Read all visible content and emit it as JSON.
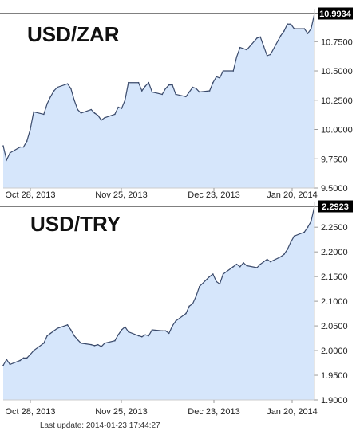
{
  "chart_data": [
    {
      "type": "area",
      "title": "USD/ZAR",
      "last_value_label": "10.9934",
      "x_tick_labels": [
        "Oct 28, 2013",
        "Nov 25, 2013",
        "Dec 23, 2013",
        "Jan 20, 2014"
      ],
      "y_tick_labels": [
        "9.5000",
        "9.7500",
        "10.0000",
        "10.2500",
        "10.5000",
        "10.7500"
      ],
      "y_ticks": [
        9.5,
        9.75,
        10.0,
        10.25,
        10.5,
        10.75
      ],
      "ylim": [
        9.5,
        10.99
      ],
      "grid": false,
      "colors": {
        "line": "#3a4a6b",
        "fill": "#d6e6fb",
        "marker": "#000000"
      },
      "series": [
        {
          "x": [
            "2013-10-23",
            "2013-10-24",
            "2013-10-25",
            "2013-10-28",
            "2013-10-29",
            "2013-10-30",
            "2013-10-31",
            "2013-11-01",
            "2013-11-04",
            "2013-11-05",
            "2013-11-06",
            "2013-11-07",
            "2013-11-08",
            "2013-11-11",
            "2013-11-12",
            "2013-11-13",
            "2013-11-14",
            "2013-11-15",
            "2013-11-18",
            "2013-11-19",
            "2013-11-20",
            "2013-11-21",
            "2013-11-22",
            "2013-11-25",
            "2013-11-26",
            "2013-11-27",
            "2013-11-28",
            "2013-11-29",
            "2013-12-02",
            "2013-12-03",
            "2013-12-04",
            "2013-12-05",
            "2013-12-06",
            "2013-12-09",
            "2013-12-10",
            "2013-12-11",
            "2013-12-12",
            "2013-12-13",
            "2013-12-16",
            "2013-12-17",
            "2013-12-18",
            "2013-12-19",
            "2013-12-20",
            "2013-12-23",
            "2013-12-24",
            "2013-12-25",
            "2013-12-26",
            "2013-12-27",
            "2013-12-30",
            "2013-12-31",
            "2014-01-01",
            "2014-01-02",
            "2014-01-03",
            "2014-01-06",
            "2014-01-07",
            "2014-01-08",
            "2014-01-09",
            "2014-01-10",
            "2014-01-13",
            "2014-01-14",
            "2014-01-15",
            "2014-01-16",
            "2014-01-17",
            "2014-01-20",
            "2014-01-21",
            "2014-01-22",
            "2014-01-23"
          ],
          "values": [
            9.86,
            9.74,
            9.8,
            9.85,
            9.85,
            9.9,
            10.0,
            10.15,
            10.13,
            10.22,
            10.28,
            10.33,
            10.36,
            10.39,
            10.35,
            10.25,
            10.17,
            10.14,
            10.17,
            10.14,
            10.12,
            10.08,
            10.1,
            10.13,
            10.19,
            10.18,
            10.25,
            10.4,
            10.4,
            10.33,
            10.37,
            10.4,
            10.32,
            10.3,
            10.35,
            10.38,
            10.38,
            10.3,
            10.28,
            10.32,
            10.36,
            10.35,
            10.32,
            10.33,
            10.4,
            10.45,
            10.44,
            10.5,
            10.5,
            10.62,
            10.7,
            10.69,
            10.68,
            10.78,
            10.79,
            10.71,
            10.63,
            10.64,
            10.8,
            10.84,
            10.9,
            10.9,
            10.86,
            10.86,
            10.82,
            10.86,
            10.99
          ]
        }
      ]
    },
    {
      "type": "area",
      "title": "USD/TRY",
      "last_value_label": "2.2923",
      "x_tick_labels": [
        "Oct 28, 2013",
        "Nov 25, 2013",
        "Dec 23, 2013",
        "Jan 20, 2014"
      ],
      "y_tick_labels": [
        "1.9000",
        "1.9500",
        "2.0000",
        "2.0500",
        "2.1000",
        "2.1500",
        "2.2000",
        "2.2500"
      ],
      "y_ticks": [
        1.9,
        1.95,
        2.0,
        2.05,
        2.1,
        2.15,
        2.2,
        2.25
      ],
      "ylim": [
        1.9,
        2.2923
      ],
      "grid": false,
      "colors": {
        "line": "#3a4a6b",
        "fill": "#d6e6fb",
        "marker": "#000000"
      },
      "series": [
        {
          "x": [
            "2013-10-23",
            "2013-10-24",
            "2013-10-25",
            "2013-10-28",
            "2013-10-29",
            "2013-10-30",
            "2013-10-31",
            "2013-11-01",
            "2013-11-04",
            "2013-11-05",
            "2013-11-06",
            "2013-11-07",
            "2013-11-08",
            "2013-11-11",
            "2013-11-12",
            "2013-11-13",
            "2013-11-14",
            "2013-11-15",
            "2013-11-18",
            "2013-11-19",
            "2013-11-20",
            "2013-11-21",
            "2013-11-22",
            "2013-11-25",
            "2013-11-26",
            "2013-11-27",
            "2013-11-28",
            "2013-11-29",
            "2013-12-02",
            "2013-12-03",
            "2013-12-04",
            "2013-12-05",
            "2013-12-06",
            "2013-12-09",
            "2013-12-10",
            "2013-12-11",
            "2013-12-12",
            "2013-12-13",
            "2013-12-16",
            "2013-12-17",
            "2013-12-18",
            "2013-12-19",
            "2013-12-20",
            "2013-12-23",
            "2013-12-24",
            "2013-12-25",
            "2013-12-26",
            "2013-12-27",
            "2013-12-30",
            "2013-12-31",
            "2014-01-01",
            "2014-01-02",
            "2014-01-03",
            "2014-01-06",
            "2014-01-07",
            "2014-01-08",
            "2014-01-09",
            "2014-01-10",
            "2014-01-13",
            "2014-01-14",
            "2014-01-15",
            "2014-01-16",
            "2014-01-17",
            "2014-01-20",
            "2014-01-21",
            "2014-01-22",
            "2014-01-23"
          ],
          "values": [
            1.97,
            1.982,
            1.972,
            1.98,
            1.985,
            1.985,
            1.992,
            2.0,
            2.015,
            2.03,
            2.035,
            2.04,
            2.045,
            2.052,
            2.042,
            2.03,
            2.022,
            2.015,
            2.012,
            2.01,
            2.012,
            2.008,
            2.015,
            2.02,
            2.032,
            2.042,
            2.048,
            2.038,
            2.03,
            2.028,
            2.032,
            2.03,
            2.042,
            2.04,
            2.04,
            2.035,
            2.05,
            2.06,
            2.075,
            2.09,
            2.095,
            2.11,
            2.13,
            2.15,
            2.155,
            2.14,
            2.135,
            2.155,
            2.17,
            2.175,
            2.17,
            2.178,
            2.172,
            2.168,
            2.175,
            2.18,
            2.185,
            2.18,
            2.19,
            2.195,
            2.205,
            2.22,
            2.232,
            2.24,
            2.25,
            2.262,
            2.2923
          ]
        }
      ]
    }
  ],
  "footer": {
    "last_update": "Last update: 2014-01-23 17:44:27"
  }
}
